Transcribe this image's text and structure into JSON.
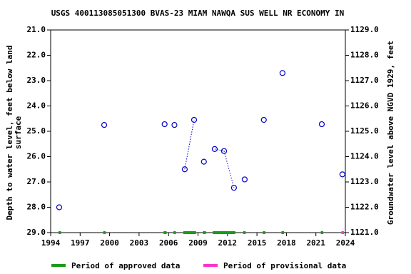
{
  "chart_data": {
    "type": "scatter",
    "title": "USGS 400113085051300 BVAS-23 MIAM NAWQA SUS WELL NR ECONOMY IN",
    "ylabel": [
      "Depth to water level, feet below land",
      "surface"
    ],
    "y2label": "Groundwater level above NGVD 1929, feet",
    "xlim": [
      1994,
      2024
    ],
    "xticks": [
      1994,
      1997,
      2000,
      2003,
      2006,
      2009,
      2012,
      2015,
      2018,
      2021,
      2024
    ],
    "ylim": [
      21,
      29
    ],
    "yticks": [
      {
        "value": 21,
        "label": "21.0"
      },
      {
        "value": 22,
        "label": "22.0"
      },
      {
        "value": 23,
        "label": "23.0"
      },
      {
        "value": 24,
        "label": "24.0"
      },
      {
        "value": 25,
        "label": "25.0"
      },
      {
        "value": 26,
        "label": "26.0"
      },
      {
        "value": 27,
        "label": "27.0"
      },
      {
        "value": 28,
        "label": "28.0"
      },
      {
        "value": 29,
        "label": "29.0"
      }
    ],
    "y2lim": [
      1129,
      1121
    ],
    "y2ticks": [
      {
        "value": 1129,
        "label": "1129.0"
      },
      {
        "value": 1128,
        "label": "1128.0"
      },
      {
        "value": 1127,
        "label": "1127.0"
      },
      {
        "value": 1126,
        "label": "1126.0"
      },
      {
        "value": 1125,
        "label": "1125.0"
      },
      {
        "value": 1124,
        "label": "1124.0"
      },
      {
        "value": 1123,
        "label": "1123.0"
      },
      {
        "value": 1122,
        "label": "1122.0"
      },
      {
        "value": 1121,
        "label": "1121.0"
      }
    ],
    "series": [
      {
        "color": "#0000cc",
        "x": [
          1994.87,
          1999.45,
          2005.6,
          2006.6,
          2007.65,
          2008.6,
          2009.6,
          2010.7,
          2011.65,
          2012.66,
          2013.75,
          2015.7,
          2017.6,
          2021.6,
          2023.7
        ],
        "values": [
          28.0,
          24.75,
          24.72,
          24.75,
          26.5,
          24.55,
          26.2,
          25.7,
          25.78,
          27.23,
          26.9,
          24.55,
          22.7,
          24.72,
          26.7
        ]
      }
    ],
    "periods": [
      {
        "name": "Period of approved data",
        "color": "#1a9a1a",
        "ranges": [
          [
            1994.8,
            1995.05
          ],
          [
            1999.35,
            1999.6
          ],
          [
            2005.5,
            2005.8
          ],
          [
            2006.5,
            2006.75
          ],
          [
            2007.5,
            2008.8
          ],
          [
            2009.5,
            2009.8
          ],
          [
            2010.5,
            2012.8
          ],
          [
            2013.6,
            2013.85
          ],
          [
            2015.6,
            2015.85
          ],
          [
            2017.5,
            2017.75
          ],
          [
            2021.5,
            2021.75
          ]
        ]
      },
      {
        "name": "Period of provisional data",
        "color": "#ff33cc",
        "ranges": [
          [
            2023.6,
            2023.85
          ]
        ]
      }
    ]
  }
}
